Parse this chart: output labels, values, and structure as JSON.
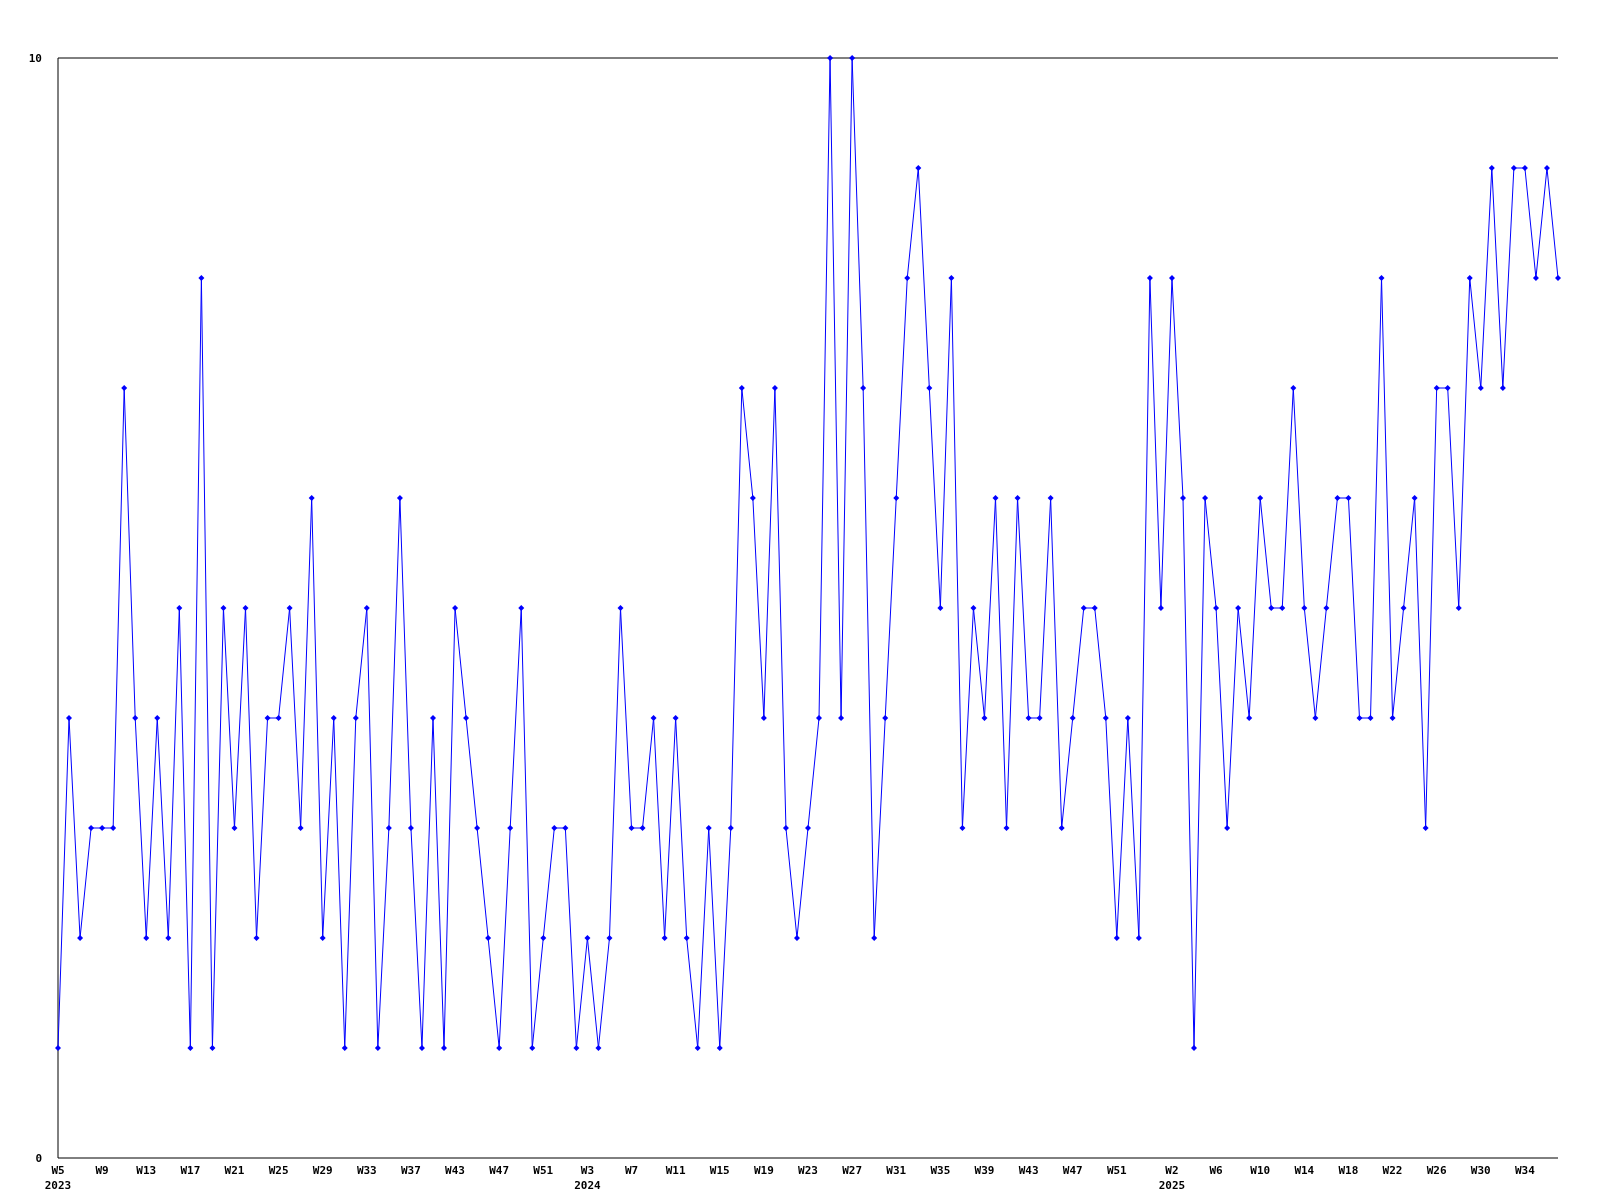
{
  "chart_data": {
    "type": "line",
    "categories": [
      "W5\n2023",
      null,
      null,
      null,
      "W9",
      null,
      null,
      null,
      "W13",
      null,
      null,
      null,
      "W17",
      null,
      null,
      null,
      "W21",
      null,
      null,
      null,
      "W25",
      null,
      null,
      null,
      "W29",
      null,
      null,
      null,
      "W33",
      null,
      null,
      null,
      "W37",
      null,
      null,
      null,
      "W43",
      null,
      null,
      null,
      "W47",
      null,
      null,
      null,
      "W51",
      null,
      null,
      null,
      "W3\n2024",
      null,
      null,
      null,
      "W7",
      null,
      null,
      null,
      "W11",
      null,
      null,
      null,
      "W15",
      null,
      null,
      null,
      "W19",
      null,
      null,
      null,
      "W23",
      null,
      null,
      null,
      "W27",
      null,
      null,
      null,
      "W31",
      null,
      null,
      null,
      "W35",
      null,
      null,
      null,
      "W39",
      null,
      null,
      null,
      "W43",
      null,
      null,
      null,
      "W47",
      null,
      null,
      null,
      "W51",
      null,
      null,
      null,
      null,
      "W2\n2025",
      null,
      null,
      null,
      "W6",
      null,
      null,
      null,
      "W10",
      null,
      null,
      null,
      "W14",
      null,
      null,
      null,
      "W18",
      null,
      null,
      null,
      "W22",
      null,
      null,
      null,
      "W26",
      null,
      null,
      null,
      "W30",
      null,
      null,
      null,
      "W34",
      null,
      null,
      null
    ],
    "series": [
      {
        "color": "#0000ff",
        "values": [
          1,
          4,
          2,
          3,
          3,
          3,
          7,
          4,
          2,
          4,
          2,
          5,
          1,
          8,
          1,
          5,
          3,
          5,
          2,
          4,
          4,
          5,
          3,
          6,
          2,
          4,
          1,
          4,
          5,
          1,
          3,
          6,
          3,
          1,
          4,
          1,
          5,
          4,
          3,
          2,
          1,
          3,
          5,
          1,
          2,
          3,
          3,
          1,
          2,
          1,
          2,
          5,
          3,
          3,
          4,
          2,
          4,
          2,
          1,
          3,
          1,
          3,
          7,
          6,
          4,
          7,
          3,
          2,
          3,
          4,
          10,
          4,
          10,
          7,
          2,
          4,
          6,
          8,
          9,
          7,
          5,
          8,
          3,
          5,
          4,
          6,
          3,
          6,
          4,
          4,
          6,
          3,
          4,
          5,
          5,
          4,
          2,
          4,
          2,
          8,
          5,
          8,
          6,
          1,
          6,
          5,
          3,
          5,
          4,
          6,
          5,
          5,
          7,
          5,
          4,
          5,
          6,
          6,
          4,
          4,
          8,
          4,
          5,
          6,
          3,
          7,
          7,
          5,
          8,
          7,
          9,
          7,
          9,
          9,
          8,
          9,
          8
        ]
      }
    ],
    "ylim": [
      0,
      10
    ],
    "yticks": [
      0,
      10
    ],
    "marker": "diamond",
    "line_style": "solid"
  }
}
